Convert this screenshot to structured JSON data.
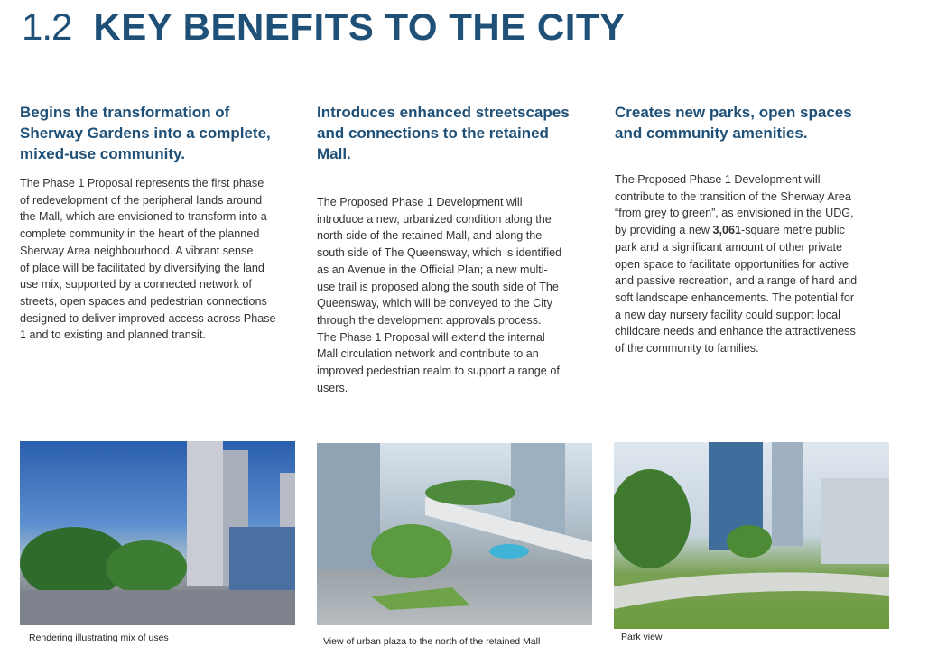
{
  "header": {
    "section_number": "1.2",
    "title": "KEY BENEFITS TO THE CITY"
  },
  "columns": [
    {
      "heading": [
        "Begins the  transformation of",
        "Sherway Gardens into a complete,",
        "mixed-use community."
      ],
      "body": [
        "The Phase 1 Proposal represents the first phase",
        "of redevelopment of the peripheral lands around",
        "the Mall, which are envisioned to transform into a",
        "complete community in the heart of the planned",
        "Sherway Area neighbourhood. A vibrant sense",
        "of place will be facilitated by diversifying the land",
        "use mix, supported by a connected network of",
        "streets, open spaces and pedestrian connections",
        "designed to deliver improved access across Phase",
        "1 and to existing and planned transit."
      ],
      "caption": "Rendering illustrating mix of uses"
    },
    {
      "heading": [
        "Introduces enhanced streetscapes",
        "and connections to the retained",
        "Mall."
      ],
      "body": [
        "The Proposed Phase 1 Development will",
        "introduce a new, urbanized condition along the",
        "north side of the retained Mall, and along the",
        "south side of The Queensway, which is identified",
        "as an Avenue in the Official Plan; a new multi-",
        "use trail is proposed along the south side of The",
        "Queensway, which will be conveyed to the City",
        "through the development approvals process.",
        "The Phase 1 Proposal will extend the internal",
        "Mall circulation network and contribute to an",
        "improved pedestrian realm to support a range of",
        "users."
      ],
      "caption": "View of urban plaza to the north of the retained Mall"
    },
    {
      "heading": [
        "Creates new parks, open spaces",
        "and community amenities."
      ],
      "body": [
        "The Proposed Phase 1 Development will",
        "contribute to the transition of the Sherway Area",
        "“from grey to green”, as envisioned in the UDG,",
        "by providing a new ",
        "3,061",
        "-square metre public",
        "park and a significant amount of other private",
        "open space to facilitate opportunities for active",
        "and passive recreation, and a range of hard and",
        "soft landscape enhancements. The potential for",
        "a new day nursery facility could support local",
        "childcare needs and enhance the attractiveness",
        "of the community to families."
      ],
      "caption": "Park view"
    }
  ],
  "colors": {
    "heading": "#1f5077",
    "body": "#333333"
  }
}
